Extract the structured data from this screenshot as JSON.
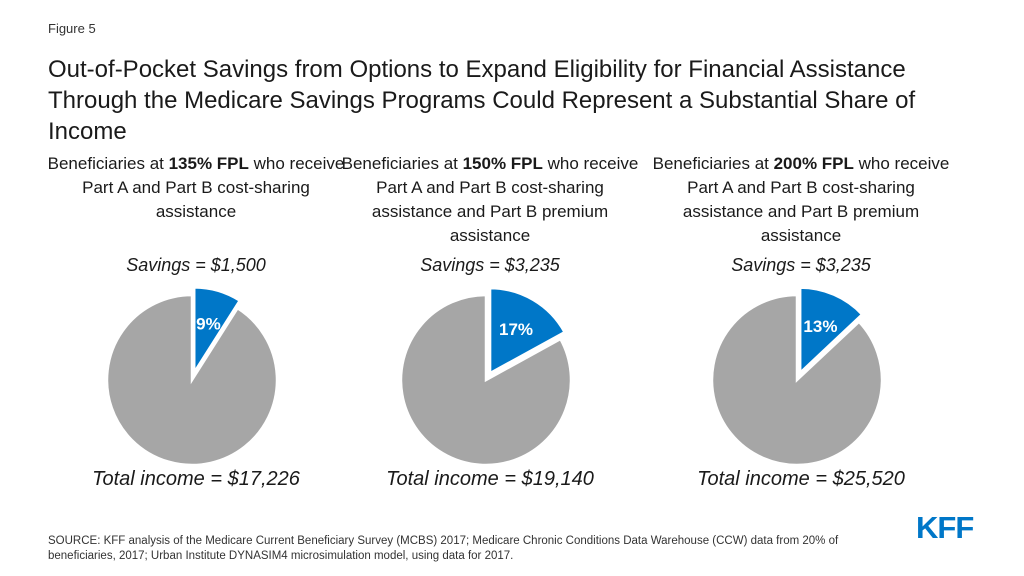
{
  "figure_label": "Figure 5",
  "title": "Out-of-Pocket Savings from Options to Expand Eligibility for Financial Assistance Through the Medicare Savings Programs Could Represent a Substantial Share of Income",
  "colors": {
    "slice": "#0077c8",
    "rest": "#a6a6a6"
  },
  "chart_data": [
    {
      "type": "pie",
      "subtitle": {
        "pre": "Beneficiaries at ",
        "bold": "135% FPL",
        "post": " who receive Part A and Part B cost-sharing assistance"
      },
      "savings_label": "Savings = $1,500",
      "total_label": "Total income = $17,226",
      "slices": [
        {
          "label": "9%",
          "value": 9,
          "exploded": true
        },
        {
          "value": 91
        }
      ]
    },
    {
      "type": "pie",
      "subtitle": {
        "pre": "Beneficiaries at ",
        "bold": "150% FPL",
        "post": " who receive Part A and Part B cost-sharing assistance and Part B premium assistance"
      },
      "savings_label": "Savings = $3,235",
      "total_label": "Total income = $19,140",
      "slices": [
        {
          "label": "17%",
          "value": 17,
          "exploded": true
        },
        {
          "value": 83
        }
      ]
    },
    {
      "type": "pie",
      "subtitle": {
        "pre": "Beneficiaries at ",
        "bold": "200% FPL",
        "post": " who receive Part A and Part B cost-sharing assistance and Part B premium assistance"
      },
      "savings_label": "Savings = $3,235",
      "total_label": "Total income = $25,520",
      "slices": [
        {
          "label": "13%",
          "value": 13,
          "exploded": true
        },
        {
          "value": 87
        }
      ]
    }
  ],
  "source": "SOURCE: KFF analysis of the Medicare Current Beneficiary Survey (MCBS) 2017; Medicare Chronic Conditions Data Warehouse (CCW) data from 20% of beneficiaries, 2017; Urban Institute DYNASIM4 microsimulation model, using data for 2017.",
  "logo_text": "KFF"
}
